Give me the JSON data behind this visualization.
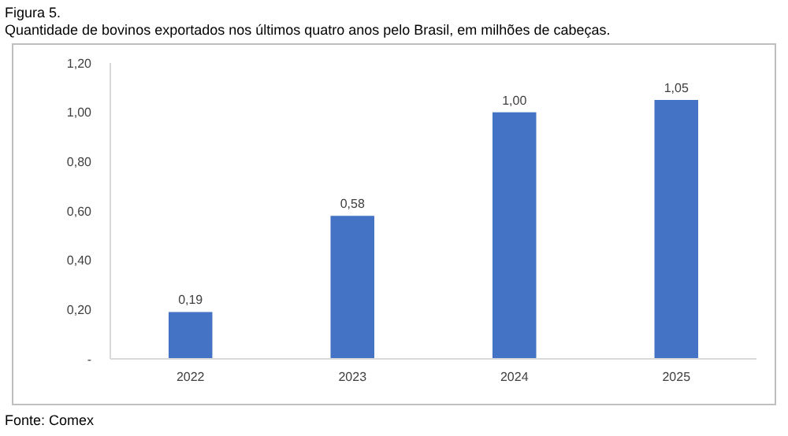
{
  "chart_data": {
    "type": "bar",
    "title": "Figura 5.",
    "subtitle": "Quantidade de bovinos exportados nos últimos quatro anos pelo Brasil, em milhões de cabeças.",
    "categories": [
      "2022",
      "2023",
      "2024",
      "2025"
    ],
    "values": [
      0.19,
      0.58,
      1.0,
      1.05
    ],
    "value_labels": [
      "0,19",
      "0,58",
      "1,00",
      "1,05"
    ],
    "color": "#4472c4",
    "ylim": [
      0,
      1.2
    ],
    "yticks": [
      {
        "value": 0,
        "label": "-"
      },
      {
        "value": 0.2,
        "label": "0,20"
      },
      {
        "value": 0.4,
        "label": "0,40"
      },
      {
        "value": 0.6,
        "label": "0,60"
      },
      {
        "value": 0.8,
        "label": "0,80"
      },
      {
        "value": 1.0,
        "label": "1,00"
      },
      {
        "value": 1.2,
        "label": "1,20"
      }
    ],
    "annotations": [
      "Fonte: Comex"
    ]
  }
}
